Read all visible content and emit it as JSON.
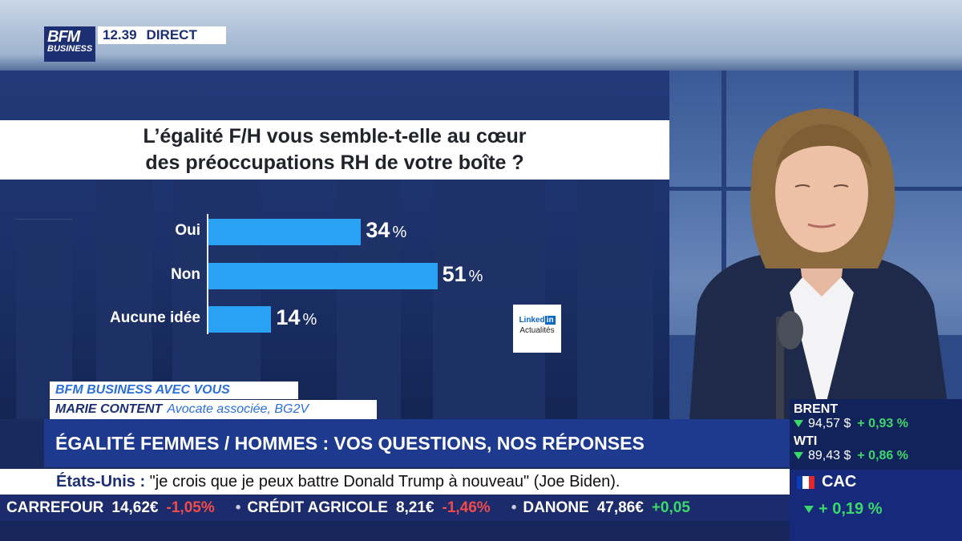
{
  "channel": {
    "logo_line1": "BFM",
    "logo_line2": "BUSINESS",
    "time": "12.39",
    "live_label": "DIRECT"
  },
  "question": {
    "line1": "L’égalité F/H vous semble-t-elle au cœur",
    "line2": "des préoccupations RH de votre boîte ?"
  },
  "chart_data": {
    "type": "bar",
    "orientation": "horizontal",
    "title": "L’égalité F/H vous semble-t-elle au cœur des préoccupations RH de votre boîte ?",
    "categories": [
      "Oui",
      "Non",
      "Aucune idée"
    ],
    "values": [
      34,
      51,
      14
    ],
    "value_labels": [
      "34",
      "51",
      "14"
    ],
    "unit": "%",
    "bar_color": "#2aa2f3",
    "xlim": [
      0,
      100
    ]
  },
  "source": {
    "brand": "Linked",
    "brand_in": "in",
    "label": "Actualités"
  },
  "lower_third": {
    "show": "BFM BUSINESS AVEC VOUS",
    "guest_name": "MARIE CONTENT",
    "guest_role": "Avocate associée, BG2V",
    "headline": "ÉGALITÉ FEMMES / HOMMES : VOS QUESTIONS, NOS RÉPONSES"
  },
  "news_ticker": {
    "topic": "États-Unis :",
    "text": " \"je crois que je peux battre Donald Trump à nouveau\" (Joe Biden)."
  },
  "stocks": [
    {
      "name": "CARREFOUR",
      "value": "14,62€",
      "change": "-1,05%",
      "dir": "down"
    },
    {
      "name": "CRÉDIT AGRICOLE",
      "value": "8,21€",
      "change": "-1,46%",
      "dir": "down"
    },
    {
      "name": "DANONE",
      "value": "47,86€",
      "change": "+0,05",
      "dir": "up"
    }
  ],
  "markets": [
    {
      "name": "BRENT",
      "value": "94,57 $",
      "change": "+ 0,93 %"
    },
    {
      "name": "WTI",
      "value": "89,43 $",
      "change": "+ 0,86 %"
    }
  ],
  "cac": {
    "name": "CAC",
    "change": "+ 0,19 %"
  },
  "colors": {
    "brand_blue": "#1d2f73",
    "accent_blue": "#2aa2f3",
    "up_green": "#3bd86b",
    "down_red": "#f24b4b"
  }
}
